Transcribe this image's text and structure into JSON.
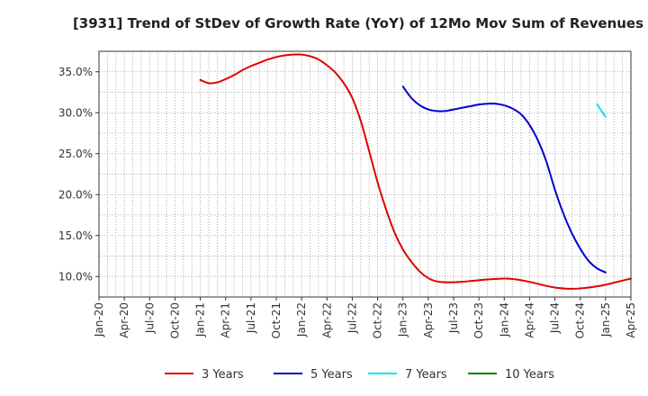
{
  "chart_data": {
    "type": "line",
    "title": "[3931]  Trend of StDev of Growth Rate (YoY) of 12Mo Mov Sum of Revenues",
    "xlabel": "",
    "ylabel": "",
    "x_tick_labels": [
      "Jan-20",
      "Apr-20",
      "Jul-20",
      "Oct-20",
      "Jan-21",
      "Apr-21",
      "Jul-21",
      "Oct-21",
      "Jan-22",
      "Apr-22",
      "Jul-22",
      "Oct-22",
      "Jan-23",
      "Apr-23",
      "Jul-23",
      "Oct-23",
      "Jan-24",
      "Apr-24",
      "Jul-24",
      "Oct-24",
      "Jan-25",
      "Apr-25"
    ],
    "y_tick_labels": [
      "10.0%",
      "15.0%",
      "20.0%",
      "25.0%",
      "30.0%",
      "35.0%"
    ],
    "y_ticks": [
      10,
      15,
      20,
      25,
      30,
      35
    ],
    "xlim": [
      0,
      63
    ],
    "ylim": [
      7.5,
      37.5
    ],
    "grid": true,
    "legend_position": "bottom",
    "series": [
      {
        "name": "3 Years",
        "color": "#e00000",
        "start_index": 12,
        "values": [
          34.0,
          33.6,
          33.7,
          34.1,
          34.6,
          35.2,
          35.7,
          36.1,
          36.5,
          36.8,
          37.0,
          37.1,
          37.1,
          36.9,
          36.5,
          35.8,
          34.9,
          33.6,
          31.8,
          29.0,
          25.3,
          21.5,
          18.2,
          15.4,
          13.3,
          11.8,
          10.6,
          9.8,
          9.4,
          9.3,
          9.3,
          9.35,
          9.45,
          9.55,
          9.65,
          9.7,
          9.75,
          9.7,
          9.55,
          9.35,
          9.1,
          8.85,
          8.65,
          8.55,
          8.5,
          8.55,
          8.65,
          8.8,
          9.0,
          9.25,
          9.5,
          9.75
        ]
      },
      {
        "name": "5 Years",
        "color": "#0000cc",
        "start_index": 36,
        "values": [
          33.2,
          31.8,
          30.9,
          30.4,
          30.2,
          30.2,
          30.4,
          30.6,
          30.8,
          31.0,
          31.1,
          31.1,
          30.9,
          30.5,
          29.8,
          28.5,
          26.6,
          24.0,
          20.6,
          17.7,
          15.3,
          13.4,
          11.9,
          11.0,
          10.5
        ]
      },
      {
        "name": "7 Years",
        "color": "#00e5e5",
        "start_index": 59,
        "values": [
          31.0,
          29.5
        ]
      },
      {
        "name": "10 Years",
        "color": "#008000",
        "start_index": 0,
        "values": []
      }
    ]
  }
}
